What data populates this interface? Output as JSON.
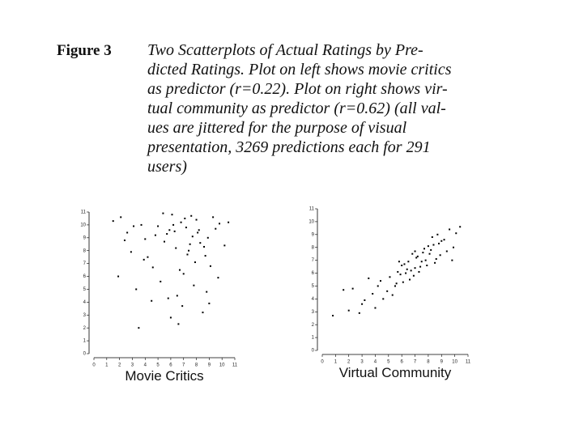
{
  "figure_label": "Figure 3",
  "caption_lines": [
    "Two Scatterplots of Actual Ratings by Pre-",
    "dicted Ratings. Plot on left shows movie critics",
    "as predictor (r=0.22). Plot on right shows vir-",
    "tual community as predictor (r=0.62) (all val-",
    "ues are jittered for the purpose of visual",
    "presentation, 3269 predictions each for 291",
    "users)"
  ],
  "chart_data": [
    {
      "type": "scatter",
      "xlabel": "Movie Critics",
      "xlim": [
        0,
        11
      ],
      "ylim": [
        0,
        11
      ],
      "xticks": [
        0,
        1,
        2,
        3,
        4,
        5,
        6,
        7,
        8,
        9,
        10,
        11
      ],
      "yticks": [
        0,
        1,
        2,
        3,
        4,
        5,
        6,
        7,
        8,
        9,
        10,
        11
      ],
      "color": "#000000",
      "x": [
        7.2,
        6.8,
        8.1,
        5.5,
        9.3,
        4.2,
        7.7,
        6.1,
        8.6,
        3.1,
        7.0,
        5.9,
        9.8,
        2.4,
        6.5,
        8.0,
        4.8,
        7.4,
        1.5,
        6.9,
        8.9,
        5.2,
        3.7,
        7.9,
        6.3,
        9.1,
        4.5,
        7.6,
        2.9,
        8.3,
        6.0,
        5.7,
        10.2,
        3.3,
        7.1,
        8.5,
        4.0,
        6.7,
        9.5,
        1.9,
        7.3,
        5.4,
        8.8,
        6.4,
        2.6,
        7.8,
        3.9,
        9.0,
        5.0,
        6.6,
        8.2,
        4.6,
        7.5,
        10.5,
        3.5,
        6.2,
        8.7,
        5.8,
        9.7,
        2.1
      ],
      "y": [
        9.8,
        10.2,
        9.4,
        8.7,
        10.6,
        7.5,
        9.1,
        10.8,
        8.3,
        9.9,
        6.2,
        9.6,
        10.1,
        8.8,
        4.5,
        10.4,
        9.2,
        8.0,
        10.3,
        3.7,
        9.0,
        5.6,
        10.0,
        7.1,
        9.5,
        6.8,
        4.1,
        10.7,
        7.9,
        8.6,
        2.8,
        9.3,
        8.4,
        5.0,
        10.5,
        3.2,
        8.9,
        6.5,
        9.7,
        6.0,
        7.7,
        10.9,
        4.8,
        8.2,
        9.4,
        5.3,
        7.3,
        3.9,
        9.9,
        2.3,
        9.6,
        6.7,
        8.5,
        10.2,
        2.0,
        10.0,
        7.6,
        4.3,
        5.9,
        10.6
      ]
    },
    {
      "type": "scatter",
      "xlabel": "Virtual Community",
      "xlim": [
        0,
        11
      ],
      "ylim": [
        0,
        11
      ],
      "xticks": [
        0,
        1,
        2,
        3,
        4,
        5,
        6,
        7,
        8,
        9,
        10,
        11
      ],
      "yticks": [
        0,
        1,
        2,
        3,
        4,
        5,
        6,
        7,
        8,
        9,
        10,
        11
      ],
      "color": "#000000",
      "x": [
        7.5,
        7.0,
        8.2,
        6.3,
        8.8,
        5.6,
        7.8,
        6.8,
        9.2,
        4.9,
        7.3,
        6.0,
        9.6,
        4.2,
        7.1,
        8.5,
        5.3,
        7.7,
        3.5,
        6.6,
        8.9,
        5.8,
        4.6,
        8.0,
        6.4,
        9.4,
        3.0,
        7.4,
        2.3,
        8.3,
        6.9,
        5.1,
        10.1,
        4.0,
        7.6,
        8.6,
        1.6,
        6.2,
        9.9,
        2.8,
        7.2,
        5.5,
        8.7,
        6.7,
        3.8,
        7.9,
        4.4,
        9.0,
        5.9,
        6.5,
        8.1,
        0.8,
        7.0,
        10.4,
        3.2,
        6.1,
        8.4,
        5.7,
        9.8,
        2.0
      ],
      "y": [
        6.9,
        6.4,
        7.8,
        6.0,
        8.3,
        5.2,
        7.0,
        7.5,
        8.6,
        4.6,
        6.1,
        6.6,
        9.4,
        5.0,
        7.2,
        6.8,
        4.3,
        7.9,
        5.6,
        5.5,
        7.4,
        6.9,
        4.0,
        8.1,
        6.3,
        7.7,
        3.6,
        6.5,
        4.8,
        8.8,
        5.8,
        5.7,
        9.1,
        3.3,
        7.6,
        7.1,
        4.7,
        6.7,
        8.0,
        2.9,
        7.3,
        5.0,
        9.0,
        6.2,
        4.4,
        6.6,
        5.4,
        8.5,
        5.9,
        6.9,
        7.5,
        2.7,
        7.7,
        9.6,
        3.9,
        5.3,
        8.2,
        6.1,
        7.0,
        3.1
      ]
    }
  ]
}
